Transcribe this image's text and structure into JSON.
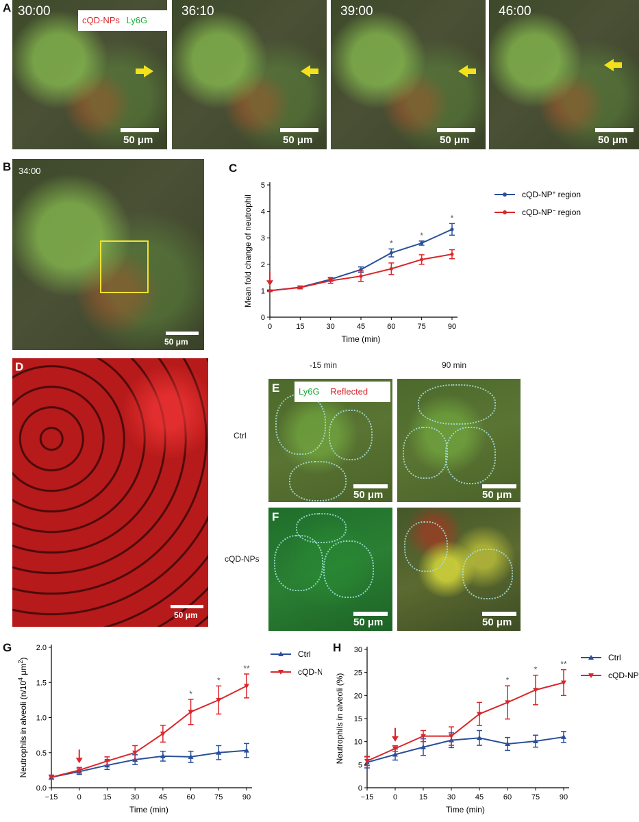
{
  "panels": {
    "A": {
      "letter": "A",
      "times": [
        "30:00",
        "36:10",
        "39:00",
        "46:00"
      ],
      "legend_np": "cQD-NPs",
      "legend_ly": "Ly6G",
      "scale": "50 μm"
    },
    "B": {
      "letter": "B",
      "time": "34:00",
      "scale": "50 μm"
    },
    "C": {
      "letter": "C"
    },
    "D": {
      "letter": "D",
      "scale": "50 μm"
    },
    "E": {
      "letter": "E",
      "col1": "-15 min",
      "col2": "90 min",
      "row_label": "Ctrl",
      "legend_ly": "Ly6G",
      "legend_ref": "Reflected",
      "scale": "50 μm"
    },
    "F": {
      "letter": "F",
      "row_label": "cQD-NPs",
      "scale": "50 μm"
    },
    "G": {
      "letter": "G"
    },
    "H": {
      "letter": "H"
    }
  },
  "colors": {
    "blue": "#2a4f9a",
    "red": "#d9272b",
    "yellow_arrow": "#f4e11a",
    "dark_red_arrow": "#d9272b"
  },
  "chart_data": [
    {
      "id": "C",
      "type": "line",
      "xlabel": "Time (min)",
      "ylabel": "Mean fold change of neutrophil",
      "x": [
        0,
        15,
        30,
        45,
        60,
        75,
        90
      ],
      "xlim": [
        0,
        90
      ],
      "ylim": [
        0,
        5
      ],
      "xticks": [
        "0",
        "15",
        "30",
        "45",
        "60",
        "75",
        "90"
      ],
      "yticks": [
        "0",
        "1",
        "2",
        "3",
        "4",
        "5"
      ],
      "series": [
        {
          "name_main": "cQD-NP",
          "name_sup": "+",
          "name_rest": " region",
          "color": "#2a4f9a",
          "values": [
            1.0,
            1.13,
            1.43,
            1.8,
            2.43,
            2.8,
            3.32
          ],
          "err": [
            0.03,
            0.05,
            0.07,
            0.1,
            0.15,
            0.08,
            0.22
          ]
        },
        {
          "name_main": "cQD-NP",
          "name_sup": "−",
          "name_rest": " region",
          "color": "#d9272b",
          "values": [
            1.0,
            1.12,
            1.38,
            1.55,
            1.83,
            2.18,
            2.38
          ],
          "err": [
            0.03,
            0.05,
            0.1,
            0.2,
            0.22,
            0.18,
            0.17
          ]
        }
      ],
      "stars": [
        {
          "x": 60,
          "label": "*"
        },
        {
          "x": 75,
          "label": "*"
        },
        {
          "x": 90,
          "label": "*"
        }
      ],
      "arrow_x": 0
    },
    {
      "id": "G",
      "type": "line",
      "xlabel": "Time (min)",
      "ylabel_main": "Neutrophils in alveoli (n/10",
      "ylabel_sup1": "4",
      "ylabel_mid": " μm",
      "ylabel_sup2": "2",
      "ylabel_end": ")",
      "x": [
        -15,
        0,
        15,
        30,
        45,
        60,
        75,
        90
      ],
      "xlim": [
        -15,
        90
      ],
      "ylim": [
        0,
        2.0
      ],
      "xticks": [
        "−15",
        "0",
        "15",
        "30",
        "45",
        "60",
        "75",
        "90"
      ],
      "yticks": [
        "0.0",
        "0.5",
        "1.0",
        "1.5",
        "2.0"
      ],
      "series": [
        {
          "name": "Ctrl",
          "color": "#2a4f9a",
          "values": [
            0.15,
            0.23,
            0.32,
            0.4,
            0.45,
            0.44,
            0.5,
            0.53
          ],
          "err": [
            0.03,
            0.04,
            0.06,
            0.07,
            0.07,
            0.08,
            0.1,
            0.1
          ]
        },
        {
          "name": "cQD-NPs",
          "color": "#d9272b",
          "values": [
            0.15,
            0.25,
            0.38,
            0.5,
            0.77,
            1.08,
            1.25,
            1.45
          ],
          "err": [
            0.03,
            0.04,
            0.06,
            0.1,
            0.12,
            0.18,
            0.2,
            0.17
          ]
        }
      ],
      "stars": [
        {
          "x": 60,
          "label": "*"
        },
        {
          "x": 75,
          "label": "*"
        },
        {
          "x": 90,
          "label": "**"
        }
      ],
      "arrow_x": 0
    },
    {
      "id": "H",
      "type": "line",
      "xlabel": "Time (min)",
      "ylabel": "Neutrophils in alveoli (%)",
      "x": [
        -15,
        0,
        15,
        30,
        45,
        60,
        75,
        90
      ],
      "xlim": [
        -15,
        90
      ],
      "ylim": [
        0,
        30
      ],
      "xticks": [
        "−15",
        "0",
        "15",
        "30",
        "45",
        "60",
        "75",
        "90"
      ],
      "yticks": [
        "0",
        "5",
        "10",
        "15",
        "20",
        "25",
        "30"
      ],
      "series": [
        {
          "name": "Ctrl",
          "color": "#2a4f9a",
          "values": [
            5.5,
            7.2,
            8.8,
            10.3,
            10.8,
            9.5,
            10.1,
            11.0
          ],
          "err": [
            1.2,
            1.2,
            1.8,
            1.6,
            1.6,
            1.4,
            1.3,
            1.2
          ]
        },
        {
          "name": "cQD-NPs",
          "color": "#d9272b",
          "values": [
            5.8,
            8.5,
            11.2,
            11.2,
            16.0,
            18.5,
            21.2,
            22.8
          ],
          "err": [
            1.0,
            0.6,
            1.2,
            2.0,
            2.5,
            3.6,
            3.2,
            2.8
          ]
        }
      ],
      "stars": [
        {
          "x": 60,
          "label": "*"
        },
        {
          "x": 75,
          "label": "*"
        },
        {
          "x": 90,
          "label": "**"
        }
      ],
      "arrow_x": 0
    }
  ]
}
